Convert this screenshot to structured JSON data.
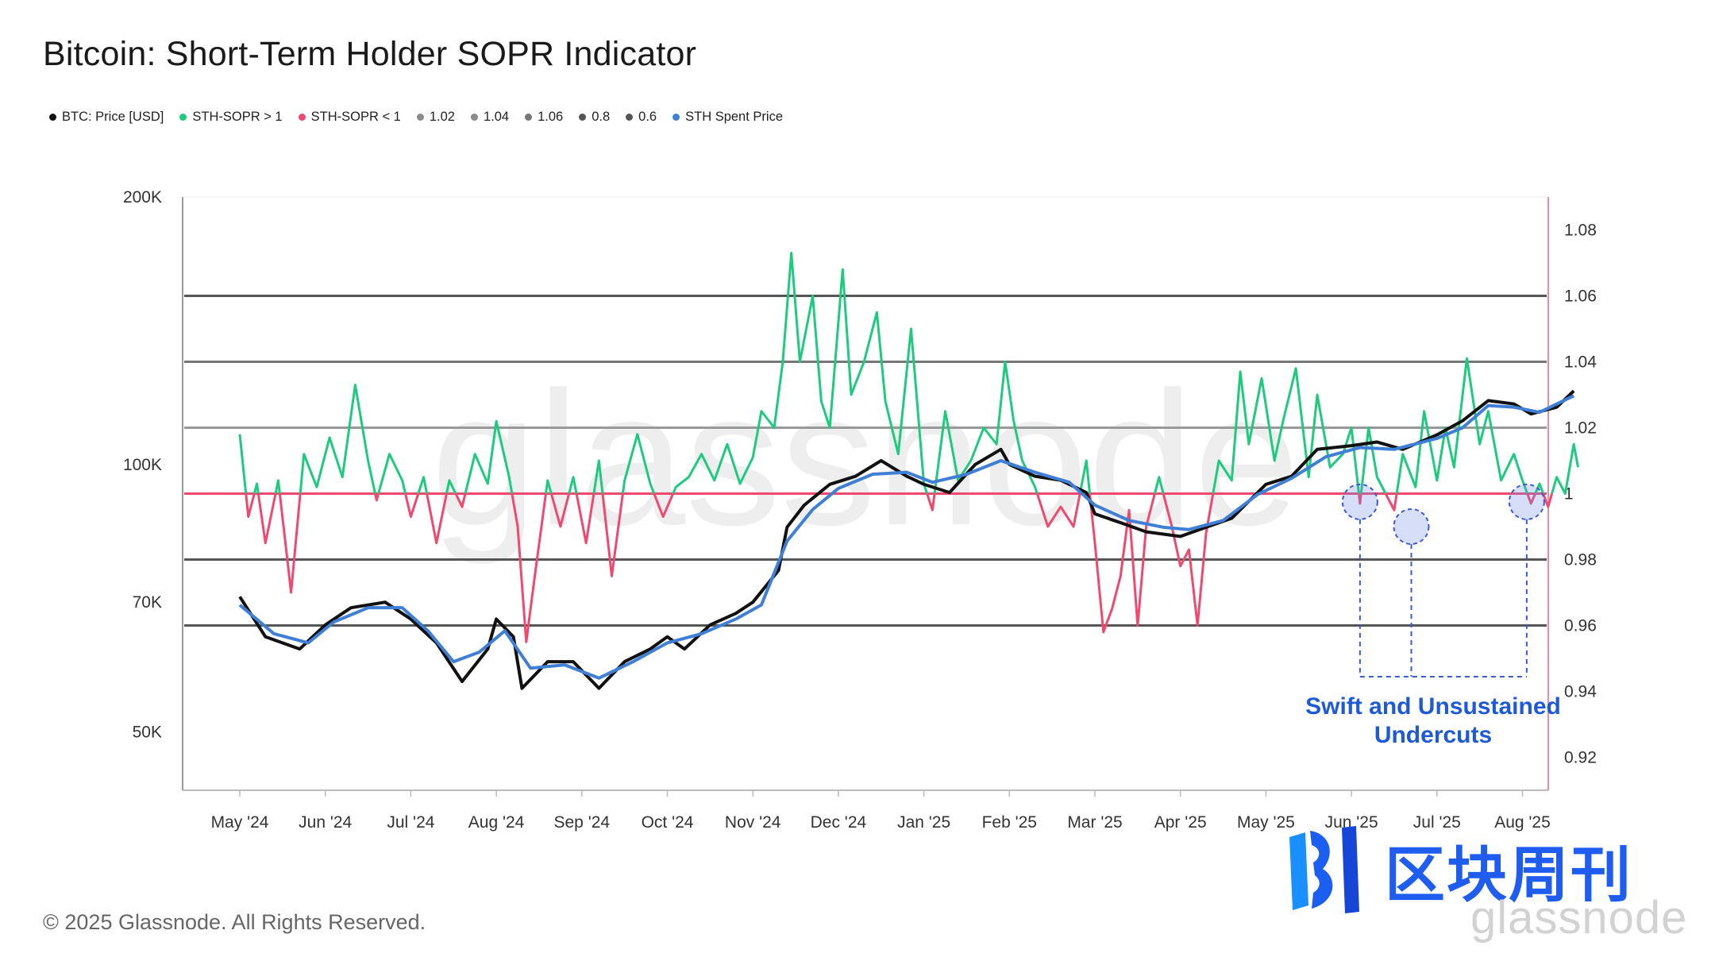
{
  "title": "Bitcoin: Short-Term Holder SOPR Indicator",
  "legend": [
    {
      "label": "BTC: Price [USD]",
      "color": "#111111"
    },
    {
      "label": "STH-SOPR > 1",
      "color": "#1ecb7e"
    },
    {
      "label": "STH-SOPR < 1",
      "color": "#f0486e"
    },
    {
      "label": "1.02",
      "color": "#8a8a8a"
    },
    {
      "label": "1.04",
      "color": "#8a8a8a"
    },
    {
      "label": "1.06",
      "color": "#777777"
    },
    {
      "label": "0.8",
      "color": "#555555"
    },
    {
      "label": "0.6",
      "color": "#555555"
    },
    {
      "label": "STH Spent Price",
      "color": "#3f7fd6"
    }
  ],
  "annotation": {
    "line1": "Swift and Unsustained",
    "line2": "Undercuts"
  },
  "copyright": "© 2025 Glassnode. All Rights Reserved.",
  "watermark": {
    "cn": "区块周刊",
    "brand": "glassnode",
    "bg": "glassnode"
  },
  "chart_data": {
    "type": "line",
    "title": "Bitcoin: Short-Term Holder SOPR Indicator",
    "x_ticks": [
      "May '24",
      "Jun '24",
      "Jul '24",
      "Aug '24",
      "Sep '24",
      "Oct '24",
      "Nov '24",
      "Dec '24",
      "Jan '25",
      "Feb '25",
      "Mar '25",
      "Apr '25",
      "May '25",
      "Jun '25",
      "Jul '25",
      "Aug '25"
    ],
    "y_left": {
      "scale": "log",
      "range": [
        43000,
        200000
      ],
      "ticks": [
        {
          "v": 200000,
          "label": "200K"
        },
        {
          "v": 100000,
          "label": "100K"
        },
        {
          "v": 70000,
          "label": "70K"
        },
        {
          "v": 50000,
          "label": "50K"
        }
      ]
    },
    "y_right": {
      "scale": "linear",
      "range": [
        0.91,
        1.09
      ],
      "ticks": [
        1.08,
        1.06,
        1.04,
        1.02,
        1,
        0.98,
        0.96,
        0.94,
        0.92
      ]
    },
    "reference_lines": [
      {
        "value": 1.06,
        "color": "#555555"
      },
      {
        "value": 1.04,
        "color": "#777777"
      },
      {
        "value": 1.02,
        "color": "#999999"
      },
      {
        "value": 1.0,
        "color": "#f0486e"
      },
      {
        "value": 0.98,
        "color": "#555555"
      },
      {
        "value": 0.96,
        "color": "#555555"
      }
    ],
    "series": [
      {
        "name": "BTC: Price [USD]",
        "color": "#111111",
        "axis": "left",
        "points": [
          [
            0,
            71000
          ],
          [
            0.3,
            64000
          ],
          [
            0.7,
            62000
          ],
          [
            1.0,
            66000
          ],
          [
            1.3,
            69000
          ],
          [
            1.7,
            70000
          ],
          [
            2.0,
            67000
          ],
          [
            2.3,
            63000
          ],
          [
            2.6,
            57000
          ],
          [
            2.9,
            62000
          ],
          [
            3.0,
            67000
          ],
          [
            3.2,
            64000
          ],
          [
            3.3,
            56000
          ],
          [
            3.6,
            60000
          ],
          [
            3.9,
            60000
          ],
          [
            4.2,
            56000
          ],
          [
            4.5,
            60000
          ],
          [
            4.8,
            62000
          ],
          [
            5.0,
            64000
          ],
          [
            5.2,
            62000
          ],
          [
            5.5,
            66000
          ],
          [
            5.8,
            68000
          ],
          [
            6.0,
            70000
          ],
          [
            6.3,
            76000
          ],
          [
            6.4,
            85000
          ],
          [
            6.6,
            90000
          ],
          [
            6.9,
            95000
          ],
          [
            7.2,
            97000
          ],
          [
            7.5,
            101000
          ],
          [
            7.8,
            97000
          ],
          [
            8.0,
            95000
          ],
          [
            8.3,
            93000
          ],
          [
            8.6,
            100000
          ],
          [
            8.9,
            104000
          ],
          [
            9.0,
            100000
          ],
          [
            9.3,
            97000
          ],
          [
            9.6,
            96000
          ],
          [
            9.9,
            93000
          ],
          [
            10.0,
            88000
          ],
          [
            10.3,
            86000
          ],
          [
            10.6,
            84000
          ],
          [
            11.0,
            83000
          ],
          [
            11.3,
            85000
          ],
          [
            11.6,
            87000
          ],
          [
            12.0,
            95000
          ],
          [
            12.3,
            97000
          ],
          [
            12.6,
            104000
          ],
          [
            13.0,
            105000
          ],
          [
            13.3,
            106000
          ],
          [
            13.6,
            104000
          ],
          [
            14.0,
            108000
          ],
          [
            14.3,
            112000
          ],
          [
            14.6,
            118000
          ],
          [
            14.9,
            117000
          ],
          [
            15.1,
            114000
          ],
          [
            15.4,
            116000
          ],
          [
            15.6,
            121000
          ]
        ]
      },
      {
        "name": "STH Spent Price",
        "color": "#3f7fd6",
        "axis": "left",
        "points": [
          [
            0,
            69500
          ],
          [
            0.4,
            64500
          ],
          [
            0.8,
            63000
          ],
          [
            1.1,
            66500
          ],
          [
            1.5,
            69000
          ],
          [
            1.9,
            69000
          ],
          [
            2.2,
            65000
          ],
          [
            2.5,
            60000
          ],
          [
            2.8,
            61500
          ],
          [
            3.1,
            65000
          ],
          [
            3.4,
            59000
          ],
          [
            3.8,
            59500
          ],
          [
            4.2,
            57500
          ],
          [
            4.6,
            60000
          ],
          [
            5.0,
            63000
          ],
          [
            5.4,
            64500
          ],
          [
            5.8,
            67000
          ],
          [
            6.1,
            69500
          ],
          [
            6.4,
            82000
          ],
          [
            6.7,
            89000
          ],
          [
            7.0,
            94000
          ],
          [
            7.4,
            97500
          ],
          [
            7.8,
            98000
          ],
          [
            8.1,
            95500
          ],
          [
            8.5,
            97500
          ],
          [
            8.9,
            101000
          ],
          [
            9.3,
            98000
          ],
          [
            9.7,
            95500
          ],
          [
            10.0,
            90000
          ],
          [
            10.4,
            86500
          ],
          [
            10.8,
            85000
          ],
          [
            11.1,
            84500
          ],
          [
            11.5,
            86500
          ],
          [
            11.9,
            92500
          ],
          [
            12.3,
            96500
          ],
          [
            12.7,
            102000
          ],
          [
            13.1,
            104500
          ],
          [
            13.5,
            104000
          ],
          [
            14.0,
            107000
          ],
          [
            14.3,
            110000
          ],
          [
            14.6,
            116500
          ],
          [
            14.9,
            116000
          ],
          [
            15.2,
            114500
          ],
          [
            15.6,
            119500
          ]
        ]
      },
      {
        "name": "STH-SOPR",
        "color_above": "#1ecb7e",
        "color_below": "#f0486e",
        "axis": "right",
        "points": [
          [
            0,
            1.018
          ],
          [
            0.1,
            0.993
          ],
          [
            0.2,
            1.003
          ],
          [
            0.3,
            0.985
          ],
          [
            0.45,
            1.004
          ],
          [
            0.6,
            0.97
          ],
          [
            0.75,
            1.012
          ],
          [
            0.9,
            1.002
          ],
          [
            1.05,
            1.017
          ],
          [
            1.2,
            1.005
          ],
          [
            1.35,
            1.033
          ],
          [
            1.5,
            1.01
          ],
          [
            1.6,
            0.998
          ],
          [
            1.75,
            1.012
          ],
          [
            1.9,
            1.004
          ],
          [
            2.0,
            0.993
          ],
          [
            2.15,
            1.005
          ],
          [
            2.3,
            0.985
          ],
          [
            2.45,
            1.004
          ],
          [
            2.6,
            0.996
          ],
          [
            2.75,
            1.012
          ],
          [
            2.9,
            1.003
          ],
          [
            3.0,
            1.022
          ],
          [
            3.15,
            1.005
          ],
          [
            3.25,
            0.99
          ],
          [
            3.35,
            0.955
          ],
          [
            3.45,
            0.975
          ],
          [
            3.6,
            1.004
          ],
          [
            3.75,
            0.99
          ],
          [
            3.9,
            1.005
          ],
          [
            4.05,
            0.985
          ],
          [
            4.2,
            1.01
          ],
          [
            4.35,
            0.975
          ],
          [
            4.5,
            1.004
          ],
          [
            4.65,
            1.018
          ],
          [
            4.8,
            1.003
          ],
          [
            4.95,
            0.993
          ],
          [
            5.1,
            1.002
          ],
          [
            5.25,
            1.005
          ],
          [
            5.4,
            1.012
          ],
          [
            5.55,
            1.004
          ],
          [
            5.7,
            1.015
          ],
          [
            5.85,
            1.003
          ],
          [
            6.0,
            1.011
          ],
          [
            6.1,
            1.025
          ],
          [
            6.25,
            1.02
          ],
          [
            6.35,
            1.04
          ],
          [
            6.45,
            1.073
          ],
          [
            6.55,
            1.04
          ],
          [
            6.7,
            1.06
          ],
          [
            6.8,
            1.028
          ],
          [
            6.9,
            1.02
          ],
          [
            7.05,
            1.068
          ],
          [
            7.15,
            1.03
          ],
          [
            7.3,
            1.04
          ],
          [
            7.45,
            1.055
          ],
          [
            7.55,
            1.028
          ],
          [
            7.7,
            1.012
          ],
          [
            7.85,
            1.05
          ],
          [
            8.0,
            1.003
          ],
          [
            8.1,
            0.995
          ],
          [
            8.25,
            1.025
          ],
          [
            8.4,
            1.004
          ],
          [
            8.55,
            1.01
          ],
          [
            8.7,
            1.02
          ],
          [
            8.85,
            1.015
          ],
          [
            8.95,
            1.04
          ],
          [
            9.05,
            1.022
          ],
          [
            9.15,
            1.01
          ],
          [
            9.3,
            1.002
          ],
          [
            9.45,
            0.99
          ],
          [
            9.6,
            0.996
          ],
          [
            9.75,
            0.99
          ],
          [
            9.9,
            1.01
          ],
          [
            10.0,
            0.985
          ],
          [
            10.1,
            0.958
          ],
          [
            10.2,
            0.965
          ],
          [
            10.3,
            0.975
          ],
          [
            10.4,
            0.995
          ],
          [
            10.5,
            0.96
          ],
          [
            10.6,
            0.99
          ],
          [
            10.75,
            1.005
          ],
          [
            10.9,
            0.99
          ],
          [
            11.0,
            0.978
          ],
          [
            11.1,
            0.983
          ],
          [
            11.2,
            0.96
          ],
          [
            11.3,
            0.988
          ],
          [
            11.45,
            1.01
          ],
          [
            11.6,
            1.004
          ],
          [
            11.7,
            1.037
          ],
          [
            11.8,
            1.015
          ],
          [
            11.95,
            1.035
          ],
          [
            12.1,
            1.01
          ],
          [
            12.2,
            1.022
          ],
          [
            12.35,
            1.038
          ],
          [
            12.5,
            1.005
          ],
          [
            12.6,
            1.03
          ],
          [
            12.75,
            1.008
          ],
          [
            12.9,
            1.012
          ],
          [
            13.0,
            1.02
          ],
          [
            13.1,
            0.997
          ],
          [
            13.2,
            1.02
          ],
          [
            13.3,
            1.005
          ],
          [
            13.5,
            0.995
          ],
          [
            13.6,
            1.012
          ],
          [
            13.75,
            1.002
          ],
          [
            13.85,
            1.025
          ],
          [
            14.0,
            1.004
          ],
          [
            14.1,
            1.02
          ],
          [
            14.2,
            1.008
          ],
          [
            14.35,
            1.041
          ],
          [
            14.5,
            1.015
          ],
          [
            14.6,
            1.025
          ],
          [
            14.75,
            1.004
          ],
          [
            14.9,
            1.012
          ],
          [
            15.0,
            1.004
          ],
          [
            15.1,
            0.997
          ],
          [
            15.2,
            1.003
          ],
          [
            15.3,
            0.996
          ],
          [
            15.4,
            1.005
          ],
          [
            15.5,
            1.0
          ],
          [
            15.6,
            1.015
          ],
          [
            15.65,
            1.008
          ]
        ]
      }
    ],
    "highlight_circles": [
      {
        "x": 13.1,
        "y": 0.9975
      },
      {
        "x": 13.7,
        "y": 0.99
      },
      {
        "x": 15.05,
        "y": 0.9975
      }
    ]
  }
}
